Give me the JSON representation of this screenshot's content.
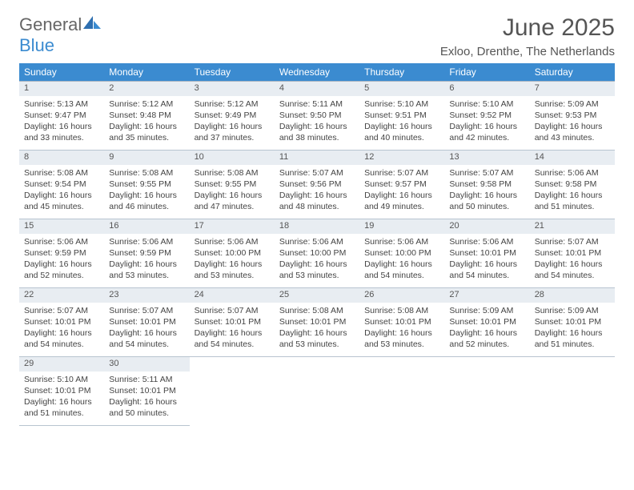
{
  "logo": {
    "text1": "General",
    "text2": "Blue"
  },
  "title": "June 2025",
  "subtitle": "Exloo, Drenthe, The Netherlands",
  "colors": {
    "header_bg": "#3b8bd0",
    "header_text": "#ffffff",
    "daynum_bg": "#e8edf2",
    "border": "#b8c4d0",
    "text": "#444444"
  },
  "day_headers": [
    "Sunday",
    "Monday",
    "Tuesday",
    "Wednesday",
    "Thursday",
    "Friday",
    "Saturday"
  ],
  "weeks": [
    [
      {
        "n": "1",
        "sr": "5:13 AM",
        "ss": "9:47 PM",
        "dl": "16 hours and 33 minutes."
      },
      {
        "n": "2",
        "sr": "5:12 AM",
        "ss": "9:48 PM",
        "dl": "16 hours and 35 minutes."
      },
      {
        "n": "3",
        "sr": "5:12 AM",
        "ss": "9:49 PM",
        "dl": "16 hours and 37 minutes."
      },
      {
        "n": "4",
        "sr": "5:11 AM",
        "ss": "9:50 PM",
        "dl": "16 hours and 38 minutes."
      },
      {
        "n": "5",
        "sr": "5:10 AM",
        "ss": "9:51 PM",
        "dl": "16 hours and 40 minutes."
      },
      {
        "n": "6",
        "sr": "5:10 AM",
        "ss": "9:52 PM",
        "dl": "16 hours and 42 minutes."
      },
      {
        "n": "7",
        "sr": "5:09 AM",
        "ss": "9:53 PM",
        "dl": "16 hours and 43 minutes."
      }
    ],
    [
      {
        "n": "8",
        "sr": "5:08 AM",
        "ss": "9:54 PM",
        "dl": "16 hours and 45 minutes."
      },
      {
        "n": "9",
        "sr": "5:08 AM",
        "ss": "9:55 PM",
        "dl": "16 hours and 46 minutes."
      },
      {
        "n": "10",
        "sr": "5:08 AM",
        "ss": "9:55 PM",
        "dl": "16 hours and 47 minutes."
      },
      {
        "n": "11",
        "sr": "5:07 AM",
        "ss": "9:56 PM",
        "dl": "16 hours and 48 minutes."
      },
      {
        "n": "12",
        "sr": "5:07 AM",
        "ss": "9:57 PM",
        "dl": "16 hours and 49 minutes."
      },
      {
        "n": "13",
        "sr": "5:07 AM",
        "ss": "9:58 PM",
        "dl": "16 hours and 50 minutes."
      },
      {
        "n": "14",
        "sr": "5:06 AM",
        "ss": "9:58 PM",
        "dl": "16 hours and 51 minutes."
      }
    ],
    [
      {
        "n": "15",
        "sr": "5:06 AM",
        "ss": "9:59 PM",
        "dl": "16 hours and 52 minutes."
      },
      {
        "n": "16",
        "sr": "5:06 AM",
        "ss": "9:59 PM",
        "dl": "16 hours and 53 minutes."
      },
      {
        "n": "17",
        "sr": "5:06 AM",
        "ss": "10:00 PM",
        "dl": "16 hours and 53 minutes."
      },
      {
        "n": "18",
        "sr": "5:06 AM",
        "ss": "10:00 PM",
        "dl": "16 hours and 53 minutes."
      },
      {
        "n": "19",
        "sr": "5:06 AM",
        "ss": "10:00 PM",
        "dl": "16 hours and 54 minutes."
      },
      {
        "n": "20",
        "sr": "5:06 AM",
        "ss": "10:01 PM",
        "dl": "16 hours and 54 minutes."
      },
      {
        "n": "21",
        "sr": "5:07 AM",
        "ss": "10:01 PM",
        "dl": "16 hours and 54 minutes."
      }
    ],
    [
      {
        "n": "22",
        "sr": "5:07 AM",
        "ss": "10:01 PM",
        "dl": "16 hours and 54 minutes."
      },
      {
        "n": "23",
        "sr": "5:07 AM",
        "ss": "10:01 PM",
        "dl": "16 hours and 54 minutes."
      },
      {
        "n": "24",
        "sr": "5:07 AM",
        "ss": "10:01 PM",
        "dl": "16 hours and 54 minutes."
      },
      {
        "n": "25",
        "sr": "5:08 AM",
        "ss": "10:01 PM",
        "dl": "16 hours and 53 minutes."
      },
      {
        "n": "26",
        "sr": "5:08 AM",
        "ss": "10:01 PM",
        "dl": "16 hours and 53 minutes."
      },
      {
        "n": "27",
        "sr": "5:09 AM",
        "ss": "10:01 PM",
        "dl": "16 hours and 52 minutes."
      },
      {
        "n": "28",
        "sr": "5:09 AM",
        "ss": "10:01 PM",
        "dl": "16 hours and 51 minutes."
      }
    ],
    [
      {
        "n": "29",
        "sr": "5:10 AM",
        "ss": "10:01 PM",
        "dl": "16 hours and 51 minutes."
      },
      {
        "n": "30",
        "sr": "5:11 AM",
        "ss": "10:01 PM",
        "dl": "16 hours and 50 minutes."
      },
      null,
      null,
      null,
      null,
      null
    ]
  ],
  "labels": {
    "sunrise": "Sunrise:",
    "sunset": "Sunset:",
    "daylight": "Daylight:"
  }
}
